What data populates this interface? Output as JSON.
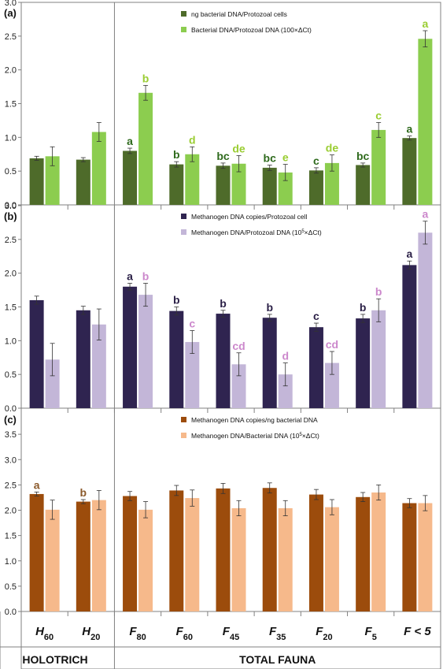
{
  "colors": {
    "a_s1": "#4e6b2a",
    "a_s2": "#8ccd4f",
    "a_l1": "#2e6a1c",
    "a_l2": "#9acd32",
    "b_s1": "#2f2450",
    "b_s2": "#c3b6d8",
    "b_l1": "#2a1f46",
    "b_l2": "#cc88cc",
    "c_s1": "#9c4c0c",
    "c_s2": "#f6b98b",
    "c_l1": "#8b5a2b",
    "c_l2": "#8b5a2b"
  },
  "x_axis": {
    "categories": [
      {
        "base": "H",
        "sub": "60"
      },
      {
        "base": "H",
        "sub": "20"
      },
      {
        "base": "F",
        "sub": "80"
      },
      {
        "base": "F",
        "sub": "60"
      },
      {
        "base": "F",
        "sub": "45"
      },
      {
        "base": "F",
        "sub": "35"
      },
      {
        "base": "F",
        "sub": "20"
      },
      {
        "base": "F",
        "sub": "5"
      },
      {
        "base": "F < 5",
        "sub": ""
      }
    ],
    "groups": [
      "HOLOTRICH",
      "TOTAL FAUNA"
    ]
  },
  "chart_data": [
    {
      "type": "bar",
      "panel_label": "(a)",
      "ylim": [
        0,
        3.0
      ],
      "yticks": [
        "0.0",
        "0.5",
        "1.0",
        "1.5",
        "2.0",
        "2.5",
        "3.0"
      ],
      "series": [
        {
          "name": "ng bacterial DNA/Protozoal cells",
          "name_html": "",
          "values": [
            0.69,
            0.67,
            0.8,
            0.6,
            0.58,
            0.55,
            0.51,
            0.59,
            0.99
          ],
          "errors": [
            0.03,
            0.03,
            0.04,
            0.04,
            0.04,
            0.04,
            0.04,
            0.03,
            0.03
          ],
          "letters": [
            "",
            "",
            "a",
            "b",
            "bc",
            "bc",
            "c",
            "bc",
            "a"
          ]
        },
        {
          "name": "Bacterial DNA/Protozoal DNA (100×ΔCt)",
          "values": [
            0.72,
            1.08,
            1.66,
            0.75,
            0.61,
            0.48,
            0.62,
            1.11,
            2.46
          ],
          "errors": [
            0.14,
            0.14,
            0.11,
            0.11,
            0.12,
            0.12,
            0.12,
            0.11,
            0.12
          ],
          "letters": [
            "",
            "",
            "b",
            "d",
            "de",
            "e",
            "de",
            "c",
            "a"
          ]
        }
      ]
    },
    {
      "type": "bar",
      "panel_label": "(b)",
      "ylim": [
        0,
        3.0
      ],
      "yticks": [
        "0.0",
        "0.5",
        "1.0",
        "1.5",
        "2.0",
        "2.5",
        "3.0"
      ],
      "series": [
        {
          "name": "Methanogen DNA copies/Protozoal cell",
          "values": [
            1.6,
            1.45,
            1.8,
            1.44,
            1.4,
            1.34,
            1.2,
            1.33,
            2.12
          ],
          "errors": [
            0.06,
            0.06,
            0.05,
            0.06,
            0.05,
            0.05,
            0.06,
            0.06,
            0.06
          ],
          "letters": [
            "",
            "",
            "a",
            "b",
            "b",
            "b",
            "c",
            "b",
            "a"
          ]
        },
        {
          "name": "Methanogen DNA/Protozoal DNA (10",
          "name_sup": "5",
          "name_tail": "×ΔCt)",
          "values": [
            0.72,
            1.24,
            1.68,
            0.98,
            0.65,
            0.5,
            0.67,
            1.45,
            2.6
          ],
          "errors": [
            0.24,
            0.23,
            0.17,
            0.17,
            0.17,
            0.17,
            0.17,
            0.17,
            0.17
          ],
          "letters": [
            "",
            "",
            "b",
            "c",
            "cd",
            "d",
            "cd",
            "b",
            "a"
          ]
        }
      ]
    },
    {
      "type": "bar",
      "panel_label": "(c)",
      "ylim": [
        0,
        4.0
      ],
      "yticks": [
        "0.0",
        "0.5",
        "1.0",
        "1.5",
        "2.0",
        "2.5",
        "3.0",
        "3.5"
      ],
      "series": [
        {
          "name": "Methanogen DNA copies/ng bacterial DNA",
          "values": [
            2.32,
            2.17,
            2.28,
            2.39,
            2.43,
            2.44,
            2.31,
            2.26,
            2.14
          ],
          "errors": [
            0.04,
            0.04,
            0.09,
            0.1,
            0.1,
            0.1,
            0.1,
            0.09,
            0.09
          ],
          "letters": [
            "a",
            "b",
            "",
            "",
            "",
            "",
            "",
            "",
            ""
          ]
        },
        {
          "name": "Methanogen DNA/Bacterial DNA (10",
          "name_sup": "5",
          "name_tail": "×ΔCt)",
          "values": [
            2.01,
            2.2,
            2.01,
            2.24,
            2.04,
            2.04,
            2.06,
            2.35,
            2.14
          ],
          "errors": [
            0.19,
            0.19,
            0.16,
            0.16,
            0.15,
            0.15,
            0.15,
            0.15,
            0.15
          ],
          "letters": [
            "",
            "",
            "",
            "",
            "",
            "",
            "",
            "",
            ""
          ]
        }
      ]
    }
  ]
}
